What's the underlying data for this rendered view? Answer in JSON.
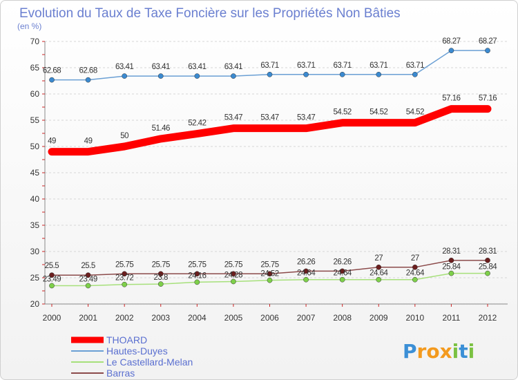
{
  "chart_data": {
    "type": "line",
    "title": "Evolution du Taux de Taxe Foncière sur les Propriétés Non Bâties",
    "subtitle": "(en %)",
    "x": [
      "2000",
      "2001",
      "2002",
      "2003",
      "2004",
      "2005",
      "2006",
      "2007",
      "2008",
      "2009",
      "2010",
      "2011",
      "2012"
    ],
    "ylim": [
      20,
      70
    ],
    "yticks": [
      20,
      25,
      30,
      35,
      40,
      45,
      50,
      55,
      60,
      65,
      70
    ],
    "grid": "horizontal",
    "legend_position": "bottom-left",
    "series": [
      {
        "name": "THOARD",
        "color": "#ff0000",
        "values": [
          49,
          49,
          50,
          51.46,
          52.42,
          53.47,
          53.47,
          53.47,
          54.52,
          54.52,
          54.52,
          57.16,
          57.16
        ],
        "labels": [
          "49",
          "49",
          "50",
          "51.46",
          "52.42",
          "53.47",
          "53.47",
          "53.47",
          "54.52",
          "54.52",
          "54.52",
          "57.16",
          "57.16"
        ]
      },
      {
        "name": "Hautes-Duyes",
        "color": "#6a9fd4",
        "values": [
          62.68,
          62.68,
          63.41,
          63.41,
          63.41,
          63.41,
          63.71,
          63.71,
          63.71,
          63.71,
          63.71,
          68.27,
          68.27
        ],
        "labels": [
          "62.68",
          "62.68",
          "63.41",
          "63.41",
          "63.41",
          "63.41",
          "63.71",
          "63.71",
          "63.71",
          "63.71",
          "63.71",
          "68.27",
          "68.27"
        ]
      },
      {
        "name": "Le Castellard-Melan",
        "color": "#a6e07a",
        "values": [
          23.49,
          23.49,
          23.72,
          23.8,
          24.16,
          24.28,
          24.52,
          24.64,
          24.64,
          24.64,
          24.64,
          25.84,
          25.84
        ],
        "labels": [
          "23.49",
          "23.49",
          "23.72",
          "23.8",
          "24.16",
          "24.28",
          "24.52",
          "24.64",
          "24.64",
          "24.64",
          "24.64",
          "25.84",
          "25.84"
        ]
      },
      {
        "name": "Barras",
        "color": "#8b4a4a",
        "values": [
          25.5,
          25.5,
          25.75,
          25.75,
          25.75,
          25.75,
          25.75,
          26.26,
          26.26,
          27,
          27,
          28.31,
          28.31
        ],
        "labels": [
          "25.5",
          "25.5",
          "25.75",
          "25.75",
          "25.75",
          "25.75",
          "25.75",
          "26.26",
          "26.26",
          "27",
          "27",
          "28.31",
          "28.31"
        ]
      }
    ]
  },
  "brand": {
    "letters": [
      "P",
      "r",
      "o",
      "x",
      "i",
      "t",
      "i"
    ],
    "colors": [
      "#3b8fd6",
      "#f39a1e",
      "#f39a1e",
      "#f39a1e",
      "#7bc142",
      "#3b8fd6",
      "#7bc142"
    ]
  }
}
